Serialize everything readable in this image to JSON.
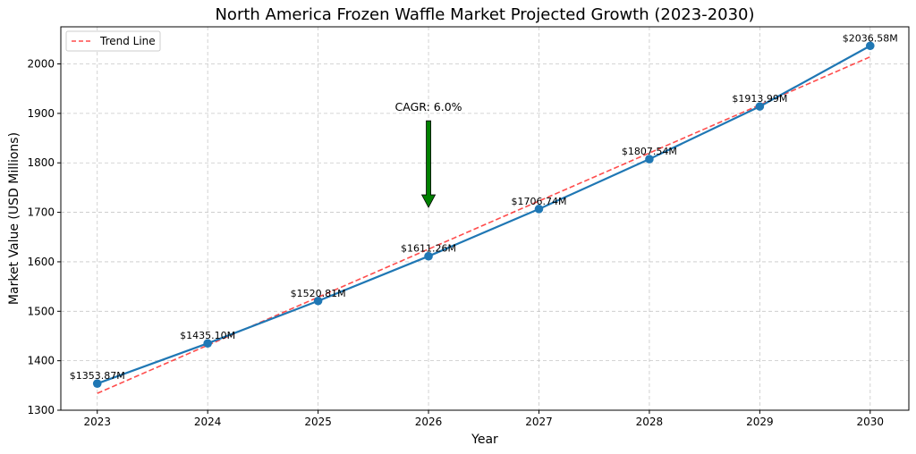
{
  "chart_data": {
    "type": "line",
    "title": "North America Frozen Waffle Market Projected Growth (2023-2030)",
    "xlabel": "Year",
    "ylabel": "Market Value (USD Millions)",
    "x": [
      2023,
      2024,
      2025,
      2026,
      2027,
      2028,
      2029,
      2030
    ],
    "xlim": [
      2022.67,
      2030.35
    ],
    "ylim": [
      1300,
      2075
    ],
    "yticks": [
      1300,
      1400,
      1500,
      1600,
      1700,
      1800,
      1900,
      2000
    ],
    "grid": true,
    "legend_position": "top-left",
    "series": [
      {
        "values": [
          1353.87,
          1435.1,
          1520.81,
          1611.26,
          1706.74,
          1807.54,
          1913.99,
          2036.58
        ],
        "labels": [
          "$1353.87M",
          "$1435.10M",
          "$1520.81M",
          "$1611.26M",
          "$1706.74M",
          "$1807.54M",
          "$1913.99M",
          "$2036.58M"
        ],
        "color": "#1f77b4",
        "style": "solid-with-markers"
      },
      {
        "name": "Trend Line",
        "values": [
          1334.1,
          1431.3,
          1528.4,
          1625.6,
          1722.8,
          1819.9,
          1917.1,
          2014.3
        ],
        "color": "#ff0000",
        "style": "dashed"
      }
    ],
    "annotations": [
      {
        "text": "CAGR: 6.0%",
        "x": 2026,
        "arrow_from": 1885,
        "arrow_to": 1710,
        "arrow_color": "#008000"
      }
    ]
  }
}
